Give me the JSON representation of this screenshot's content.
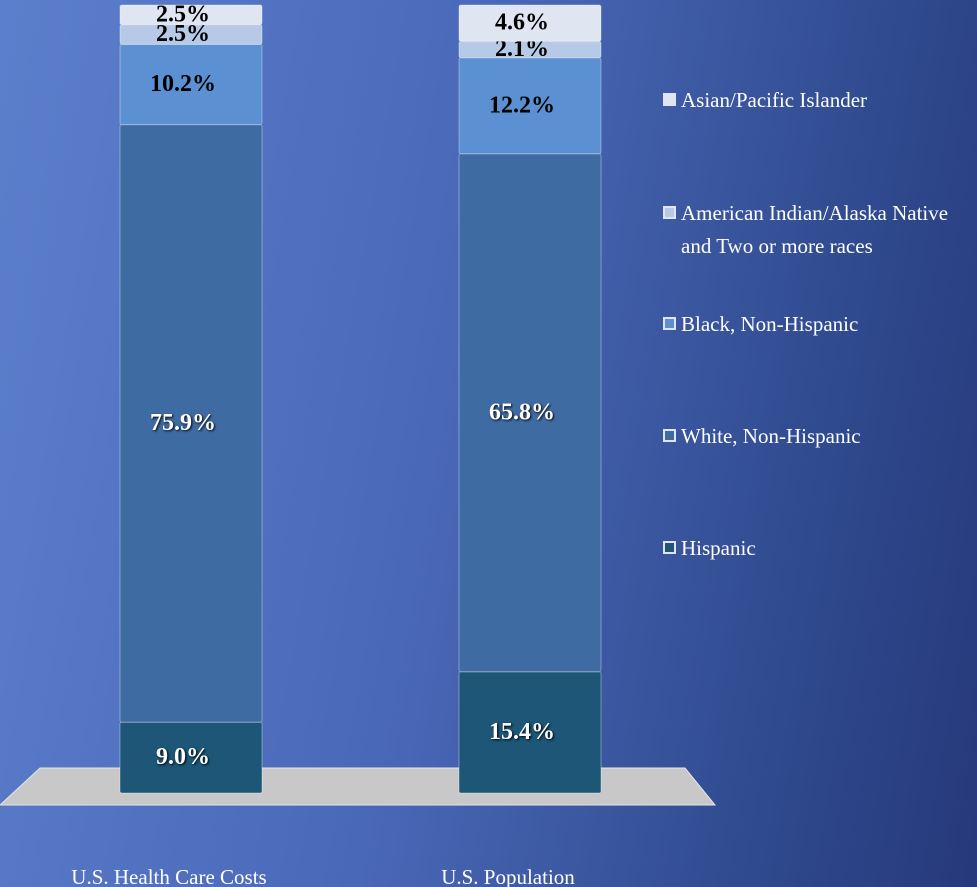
{
  "chart_data": {
    "type": "stacked_bar",
    "categories": [
      "U.S. Health Care Costs",
      "U.S. Population"
    ],
    "series": [
      {
        "name": "Hispanic",
        "color": "#1d5677",
        "values": [
          9.0,
          15.4
        ],
        "value_labels": [
          "9.0%",
          "15.4%"
        ]
      },
      {
        "name": "White, Non-Hispanic",
        "color": "#3f6ba3",
        "values": [
          75.9,
          65.8
        ],
        "value_labels": [
          "75.9%",
          "65.8%"
        ]
      },
      {
        "name": "Black, Non-Hispanic",
        "color": "#5b90d2",
        "values": [
          10.2,
          12.2
        ],
        "value_labels": [
          "10.2%",
          "12.2%"
        ]
      },
      {
        "name": "American Indian/Alaska Native and Two or more races",
        "color": "#b6c9e6",
        "values": [
          2.5,
          2.1
        ],
        "value_labels": [
          "2.5%",
          "2.1%"
        ]
      },
      {
        "name": "Asian/Pacific Islander",
        "color": "#dfe6f1",
        "values": [
          2.5,
          4.6
        ],
        "value_labels": [
          "2.5%",
          "4.6%"
        ]
      }
    ]
  }
}
